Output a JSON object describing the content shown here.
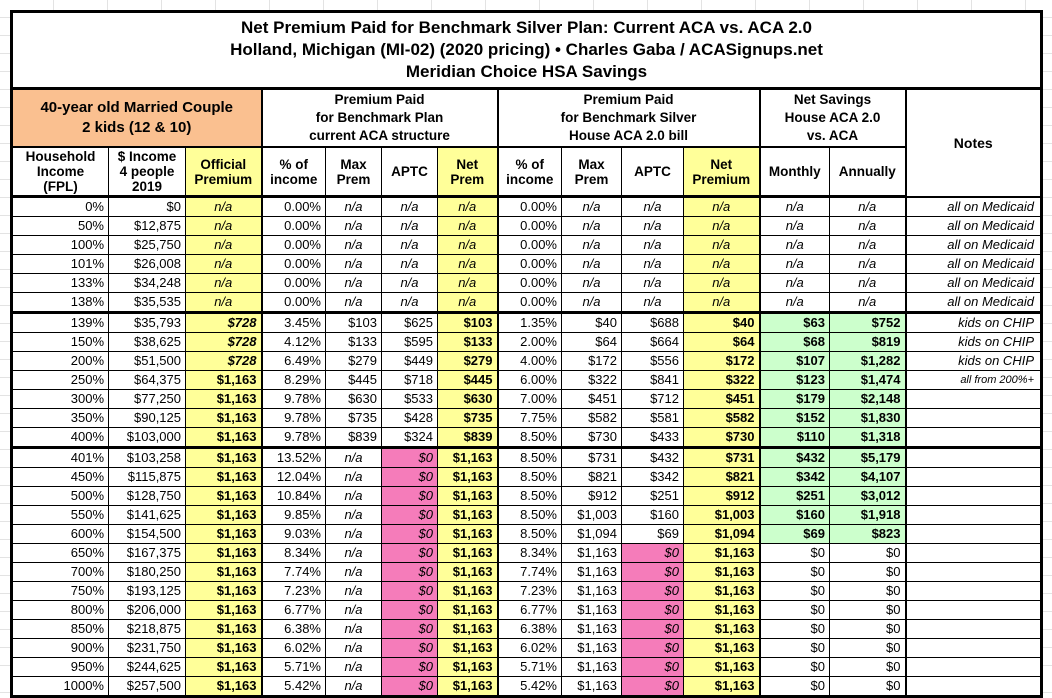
{
  "title": {
    "line1": "Net Premium Paid for Benchmark Silver Plan: Current ACA vs. ACA 2.0",
    "line2": "Holland, Michigan (MI-02) (2020 pricing) • Charles Gaba / ACASignups.net",
    "line3": "Meridian Choice HSA Savings"
  },
  "header_groups": {
    "household": "40-year old Married Couple\n2 kids (12 & 10)",
    "aca": "Premium Paid\nfor Benchmark Plan\ncurrent ACA structure",
    "aca2": "Premium Paid\nfor Benchmark Silver\nHouse ACA 2.0 bill",
    "savings": "Net Savings\nHouse ACA 2.0\nvs. ACA",
    "notes": "Notes"
  },
  "column_headers": [
    "Household\nIncome\n(FPL)",
    "$ Income\n4 people\n2019",
    "Official\nPremium",
    "% of\nincome",
    "Max\nPrem",
    "APTC",
    "Net\nPrem",
    "% of\nincome",
    "Max\nPrem",
    "APTC",
    "Net\nPremium",
    "Monthly",
    "Annually"
  ],
  "colors": {
    "orange": "#FAC090",
    "yellow": "#FFFF99",
    "pink": "#F57CBA",
    "green": "#CCFFCC"
  },
  "rows": [
    [
      "0%",
      "$0",
      "n/a",
      "0.00%",
      "n/a",
      "n/a",
      "n/a",
      "0.00%",
      "n/a",
      "n/a",
      "n/a",
      "n/a",
      "n/a",
      "all on Medicaid"
    ],
    [
      "50%",
      "$12,875",
      "n/a",
      "0.00%",
      "n/a",
      "n/a",
      "n/a",
      "0.00%",
      "n/a",
      "n/a",
      "n/a",
      "n/a",
      "n/a",
      "all on Medicaid"
    ],
    [
      "100%",
      "$25,750",
      "n/a",
      "0.00%",
      "n/a",
      "n/a",
      "n/a",
      "0.00%",
      "n/a",
      "n/a",
      "n/a",
      "n/a",
      "n/a",
      "all on Medicaid"
    ],
    [
      "101%",
      "$26,008",
      "n/a",
      "0.00%",
      "n/a",
      "n/a",
      "n/a",
      "0.00%",
      "n/a",
      "n/a",
      "n/a",
      "n/a",
      "n/a",
      "all on Medicaid"
    ],
    [
      "133%",
      "$34,248",
      "n/a",
      "0.00%",
      "n/a",
      "n/a",
      "n/a",
      "0.00%",
      "n/a",
      "n/a",
      "n/a",
      "n/a",
      "n/a",
      "all on Medicaid"
    ],
    [
      "138%",
      "$35,535",
      "n/a",
      "0.00%",
      "n/a",
      "n/a",
      "n/a",
      "0.00%",
      "n/a",
      "n/a",
      "n/a",
      "n/a",
      "n/a",
      "all on Medicaid"
    ],
    [
      "139%",
      "$35,793",
      "$728",
      "3.45%",
      "$103",
      "$625",
      "$103",
      "1.35%",
      "$40",
      "$688",
      "$40",
      "$63",
      "$752",
      "kids on CHIP"
    ],
    [
      "150%",
      "$38,625",
      "$728",
      "4.12%",
      "$133",
      "$595",
      "$133",
      "2.00%",
      "$64",
      "$664",
      "$64",
      "$68",
      "$819",
      "kids on CHIP"
    ],
    [
      "200%",
      "$51,500",
      "$728",
      "6.49%",
      "$279",
      "$449",
      "$279",
      "4.00%",
      "$172",
      "$556",
      "$172",
      "$107",
      "$1,282",
      "kids on CHIP"
    ],
    [
      "250%",
      "$64,375",
      "$1,163",
      "8.29%",
      "$445",
      "$718",
      "$445",
      "6.00%",
      "$322",
      "$841",
      "$322",
      "$123",
      "$1,474",
      "all from 200%+"
    ],
    [
      "300%",
      "$77,250",
      "$1,163",
      "9.78%",
      "$630",
      "$533",
      "$630",
      "7.00%",
      "$451",
      "$712",
      "$451",
      "$179",
      "$2,148",
      ""
    ],
    [
      "350%",
      "$90,125",
      "$1,163",
      "9.78%",
      "$735",
      "$428",
      "$735",
      "7.75%",
      "$582",
      "$581",
      "$582",
      "$152",
      "$1,830",
      ""
    ],
    [
      "400%",
      "$103,000",
      "$1,163",
      "9.78%",
      "$839",
      "$324",
      "$839",
      "8.50%",
      "$730",
      "$433",
      "$730",
      "$110",
      "$1,318",
      ""
    ],
    [
      "401%",
      "$103,258",
      "$1,163",
      "13.52%",
      "n/a",
      "$0",
      "$1,163",
      "8.50%",
      "$731",
      "$432",
      "$731",
      "$432",
      "$5,179",
      ""
    ],
    [
      "450%",
      "$115,875",
      "$1,163",
      "12.04%",
      "n/a",
      "$0",
      "$1,163",
      "8.50%",
      "$821",
      "$342",
      "$821",
      "$342",
      "$4,107",
      ""
    ],
    [
      "500%",
      "$128,750",
      "$1,163",
      "10.84%",
      "n/a",
      "$0",
      "$1,163",
      "8.50%",
      "$912",
      "$251",
      "$912",
      "$251",
      "$3,012",
      ""
    ],
    [
      "550%",
      "$141,625",
      "$1,163",
      "9.85%",
      "n/a",
      "$0",
      "$1,163",
      "8.50%",
      "$1,003",
      "$160",
      "$1,003",
      "$160",
      "$1,918",
      ""
    ],
    [
      "600%",
      "$154,500",
      "$1,163",
      "9.03%",
      "n/a",
      "$0",
      "$1,163",
      "8.50%",
      "$1,094",
      "$69",
      "$1,094",
      "$69",
      "$823",
      ""
    ],
    [
      "650%",
      "$167,375",
      "$1,163",
      "8.34%",
      "n/a",
      "$0",
      "$1,163",
      "8.34%",
      "$1,163",
      "$0",
      "$1,163",
      "$0",
      "$0",
      ""
    ],
    [
      "700%",
      "$180,250",
      "$1,163",
      "7.74%",
      "n/a",
      "$0",
      "$1,163",
      "7.74%",
      "$1,163",
      "$0",
      "$1,163",
      "$0",
      "$0",
      ""
    ],
    [
      "750%",
      "$193,125",
      "$1,163",
      "7.23%",
      "n/a",
      "$0",
      "$1,163",
      "7.23%",
      "$1,163",
      "$0",
      "$1,163",
      "$0",
      "$0",
      ""
    ],
    [
      "800%",
      "$206,000",
      "$1,163",
      "6.77%",
      "n/a",
      "$0",
      "$1,163",
      "6.77%",
      "$1,163",
      "$0",
      "$1,163",
      "$0",
      "$0",
      ""
    ],
    [
      "850%",
      "$218,875",
      "$1,163",
      "6.38%",
      "n/a",
      "$0",
      "$1,163",
      "6.38%",
      "$1,163",
      "$0",
      "$1,163",
      "$0",
      "$0",
      ""
    ],
    [
      "900%",
      "$231,750",
      "$1,163",
      "6.02%",
      "n/a",
      "$0",
      "$1,163",
      "6.02%",
      "$1,163",
      "$0",
      "$1,163",
      "$0",
      "$0",
      ""
    ],
    [
      "950%",
      "$244,625",
      "$1,163",
      "5.71%",
      "n/a",
      "$0",
      "$1,163",
      "5.71%",
      "$1,163",
      "$0",
      "$1,163",
      "$0",
      "$0",
      ""
    ],
    [
      "1000%",
      "$257,500",
      "$1,163",
      "5.42%",
      "n/a",
      "$0",
      "$1,163",
      "5.42%",
      "$1,163",
      "$0",
      "$1,163",
      "$0",
      "$0",
      ""
    ]
  ]
}
